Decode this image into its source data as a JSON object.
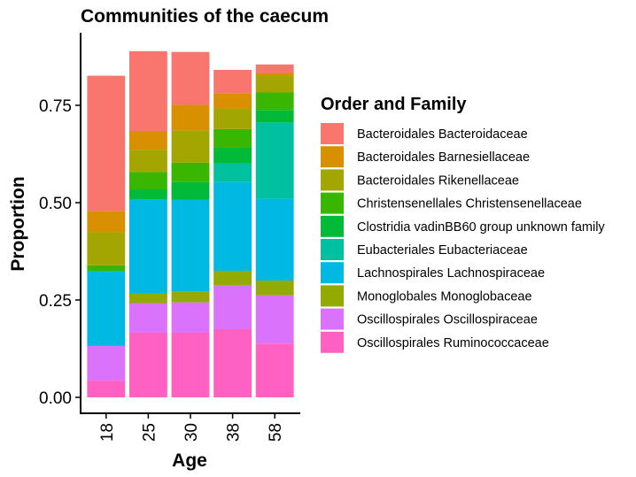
{
  "chart_data": {
    "type": "bar",
    "stacked": true,
    "title": "Communities of the caecum",
    "xlabel": "Age",
    "ylabel": "Proportion",
    "categories": [
      "18",
      "25",
      "30",
      "38",
      "58"
    ],
    "ylim": [
      0,
      0.9
    ],
    "yticks": [
      0.0,
      0.25,
      0.5,
      0.75
    ],
    "ytick_labels": [
      "0.00",
      "0.25",
      "0.50",
      "0.75"
    ],
    "grid": false,
    "legend_title": "Order and Family",
    "legend_position": "right",
    "series": [
      {
        "name": "Oscillospirales Ruminococcaceae",
        "color": "#FF61C3",
        "values": [
          0.043,
          0.166,
          0.166,
          0.175,
          0.138
        ]
      },
      {
        "name": "Oscillospirales Oscillospiraceae",
        "color": "#DB72FB",
        "values": [
          0.089,
          0.076,
          0.078,
          0.112,
          0.124
        ]
      },
      {
        "name": "Monoglobales Monoglobaceae",
        "color": "#93AA00",
        "values": [
          0.0,
          0.024,
          0.028,
          0.038,
          0.038
        ]
      },
      {
        "name": "Lachnospirales Lachnospiraceae",
        "color": "#00B9E3",
        "values": [
          0.192,
          0.243,
          0.236,
          0.228,
          0.21
        ]
      },
      {
        "name": "Eubacteriales Eubacteriaceae",
        "color": "#00C19F",
        "values": [
          0.0,
          0.0,
          0.0,
          0.048,
          0.196
        ]
      },
      {
        "name": "Clostridia vadinBB60 group unknown family",
        "color": "#00BA38",
        "values": [
          0.0,
          0.025,
          0.045,
          0.04,
          0.032
        ]
      },
      {
        "name": "Christensenellales Christensenellaceae",
        "color": "#39B600",
        "values": [
          0.015,
          0.045,
          0.05,
          0.048,
          0.045
        ]
      },
      {
        "name": "Bacteroidales Rikenellaceae",
        "color": "#A3A500",
        "values": [
          0.085,
          0.057,
          0.083,
          0.052,
          0.042
        ]
      },
      {
        "name": "Bacteroidales Barnesiellaceae",
        "color": "#D89000",
        "values": [
          0.055,
          0.048,
          0.065,
          0.04,
          0.008
        ]
      },
      {
        "name": "Bacteroidales Bacteroidaceae",
        "color": "#F8766D",
        "values": [
          0.347,
          0.205,
          0.136,
          0.06,
          0.022
        ]
      }
    ]
  }
}
